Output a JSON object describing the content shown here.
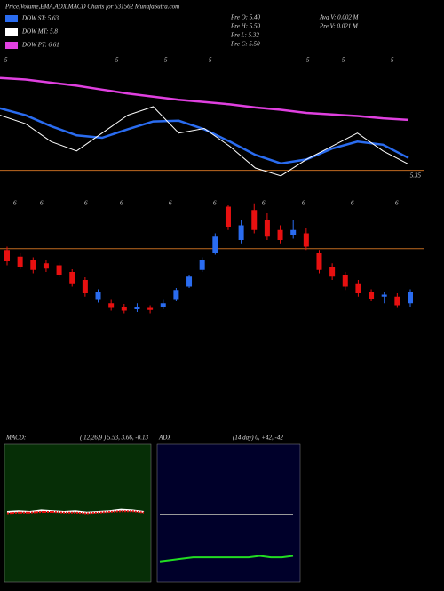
{
  "header": {
    "title": "Price,Volume,EMA,ADX,MACD Charts for 531562 MunafaSutra.com",
    "legend": [
      {
        "text": "DOW ST: 5.63",
        "color": "#2a6cf0"
      },
      {
        "text": "DOW MT: 5.8",
        "color": "#ffffff"
      },
      {
        "text": "DOW PT: 6.61",
        "color": "#e040e0"
      }
    ],
    "info": [
      "Pre  O: 5.40",
      "Pre  H: 5.50",
      "Pre  L: 5.32",
      "Pre  C: 5.50",
      "Avg  V: 0.002  M",
      "Pre  V: 0.021  M"
    ]
  },
  "chart_data": [
    {
      "type": "line",
      "ylim": [
        5.14,
        6.8
      ],
      "ref_line": 5.35,
      "ref_color": "#c06a20",
      "top_labels": [
        "5",
        "5",
        "5",
        "5",
        "5",
        "5",
        "5"
      ],
      "series": [
        {
          "name": "DOW PT: 6.61",
          "color": "#e040e0",
          "values": [
            6.54,
            6.52,
            6.48,
            6.44,
            6.39,
            6.34,
            6.3,
            6.26,
            6.23,
            6.2,
            6.16,
            6.13,
            6.09,
            6.07,
            6.05,
            6.02,
            6.0
          ]
        },
        {
          "name": "DOW ST: 5.63",
          "color": "#2a6cf0",
          "values": [
            6.15,
            6.06,
            5.92,
            5.8,
            5.77,
            5.88,
            5.98,
            5.99,
            5.88,
            5.72,
            5.55,
            5.44,
            5.49,
            5.63,
            5.72,
            5.68,
            5.51
          ]
        },
        {
          "name": "DOW MT: 5.8",
          "color": "#ffffff",
          "values": [
            6.06,
            5.95,
            5.72,
            5.6,
            5.83,
            6.06,
            6.17,
            5.83,
            5.89,
            5.66,
            5.38,
            5.28,
            5.49,
            5.66,
            5.83,
            5.6,
            5.43
          ]
        }
      ]
    },
    {
      "type": "candlestick",
      "ylim": [
        5.0,
        7.0
      ],
      "ref_line": 6.27,
      "ref_color": "#c06a20",
      "up_color": "#2a6cf0",
      "down_color": "#e81010",
      "top_labels": [
        "6",
        "6",
        "6",
        "6",
        "6",
        "6",
        "6",
        "6",
        "6",
        "6"
      ],
      "open": [
        6.25,
        6.15,
        6.1,
        6.05,
        6.02,
        5.92,
        5.8,
        5.5,
        5.45,
        5.4,
        5.36,
        5.38,
        5.4,
        5.5,
        5.7,
        5.95,
        6.2,
        6.9,
        6.4,
        6.85,
        6.7,
        6.55,
        6.48,
        6.5,
        6.2,
        6.0,
        5.88,
        5.75,
        5.62,
        5.55,
        5.55,
        5.45
      ],
      "high": [
        6.3,
        6.2,
        6.14,
        6.1,
        6.06,
        5.96,
        5.84,
        5.66,
        5.5,
        5.44,
        5.45,
        5.42,
        5.5,
        5.68,
        5.88,
        6.14,
        6.5,
        6.92,
        6.7,
        6.95,
        6.8,
        6.62,
        6.7,
        6.58,
        6.25,
        6.05,
        5.92,
        5.8,
        5.66,
        5.62,
        5.6,
        5.66
      ],
      "low": [
        6.02,
        5.96,
        5.9,
        5.92,
        5.84,
        5.7,
        5.55,
        5.46,
        5.34,
        5.3,
        5.32,
        5.3,
        5.36,
        5.48,
        5.68,
        5.92,
        6.18,
        6.55,
        6.35,
        6.5,
        6.4,
        6.35,
        6.42,
        6.25,
        5.9,
        5.8,
        5.65,
        5.55,
        5.48,
        5.45,
        5.38,
        5.4
      ],
      "close": [
        6.08,
        6.0,
        5.95,
        5.97,
        5.88,
        5.75,
        5.6,
        5.62,
        5.38,
        5.34,
        5.4,
        5.35,
        5.45,
        5.65,
        5.85,
        6.1,
        6.45,
        6.6,
        6.62,
        6.55,
        6.45,
        6.4,
        6.55,
        6.3,
        5.95,
        5.85,
        5.7,
        5.6,
        5.52,
        5.58,
        5.42,
        5.62
      ]
    },
    {
      "type": "macd",
      "title": "MACD:",
      "subtitle": "( 12,26,9 ) 5.53, 3.66, -0.13",
      "ylim": [
        -10,
        10
      ],
      "background": "#062e06",
      "series": [
        {
          "color": "#ffffff",
          "values": [
            0.2,
            0.3,
            0.2,
            0.4,
            0.3,
            0.2,
            0.3,
            0.1,
            0.2,
            0.3,
            0.5,
            0.4,
            0.2
          ]
        },
        {
          "color": "#e81010",
          "values": [
            0.0,
            0.1,
            0.1,
            0.2,
            0.2,
            0.1,
            0.1,
            0.0,
            0.1,
            0.2,
            0.3,
            0.3,
            0.1
          ]
        }
      ]
    },
    {
      "type": "adx",
      "title": "ADX",
      "subtitle": "(14  day) 0, +42, -42",
      "ylim": [
        0,
        100
      ],
      "background": "#00002a",
      "series": [
        {
          "color": "#9a9a9a",
          "values": [
            49,
            49,
            49,
            49,
            49,
            49,
            49,
            49,
            49,
            49,
            49,
            49,
            49
          ]
        },
        {
          "color": "#22dd22",
          "values": [
            15,
            16,
            17,
            18,
            18,
            18,
            18,
            18,
            18,
            19,
            18,
            18,
            19
          ]
        }
      ]
    }
  ]
}
